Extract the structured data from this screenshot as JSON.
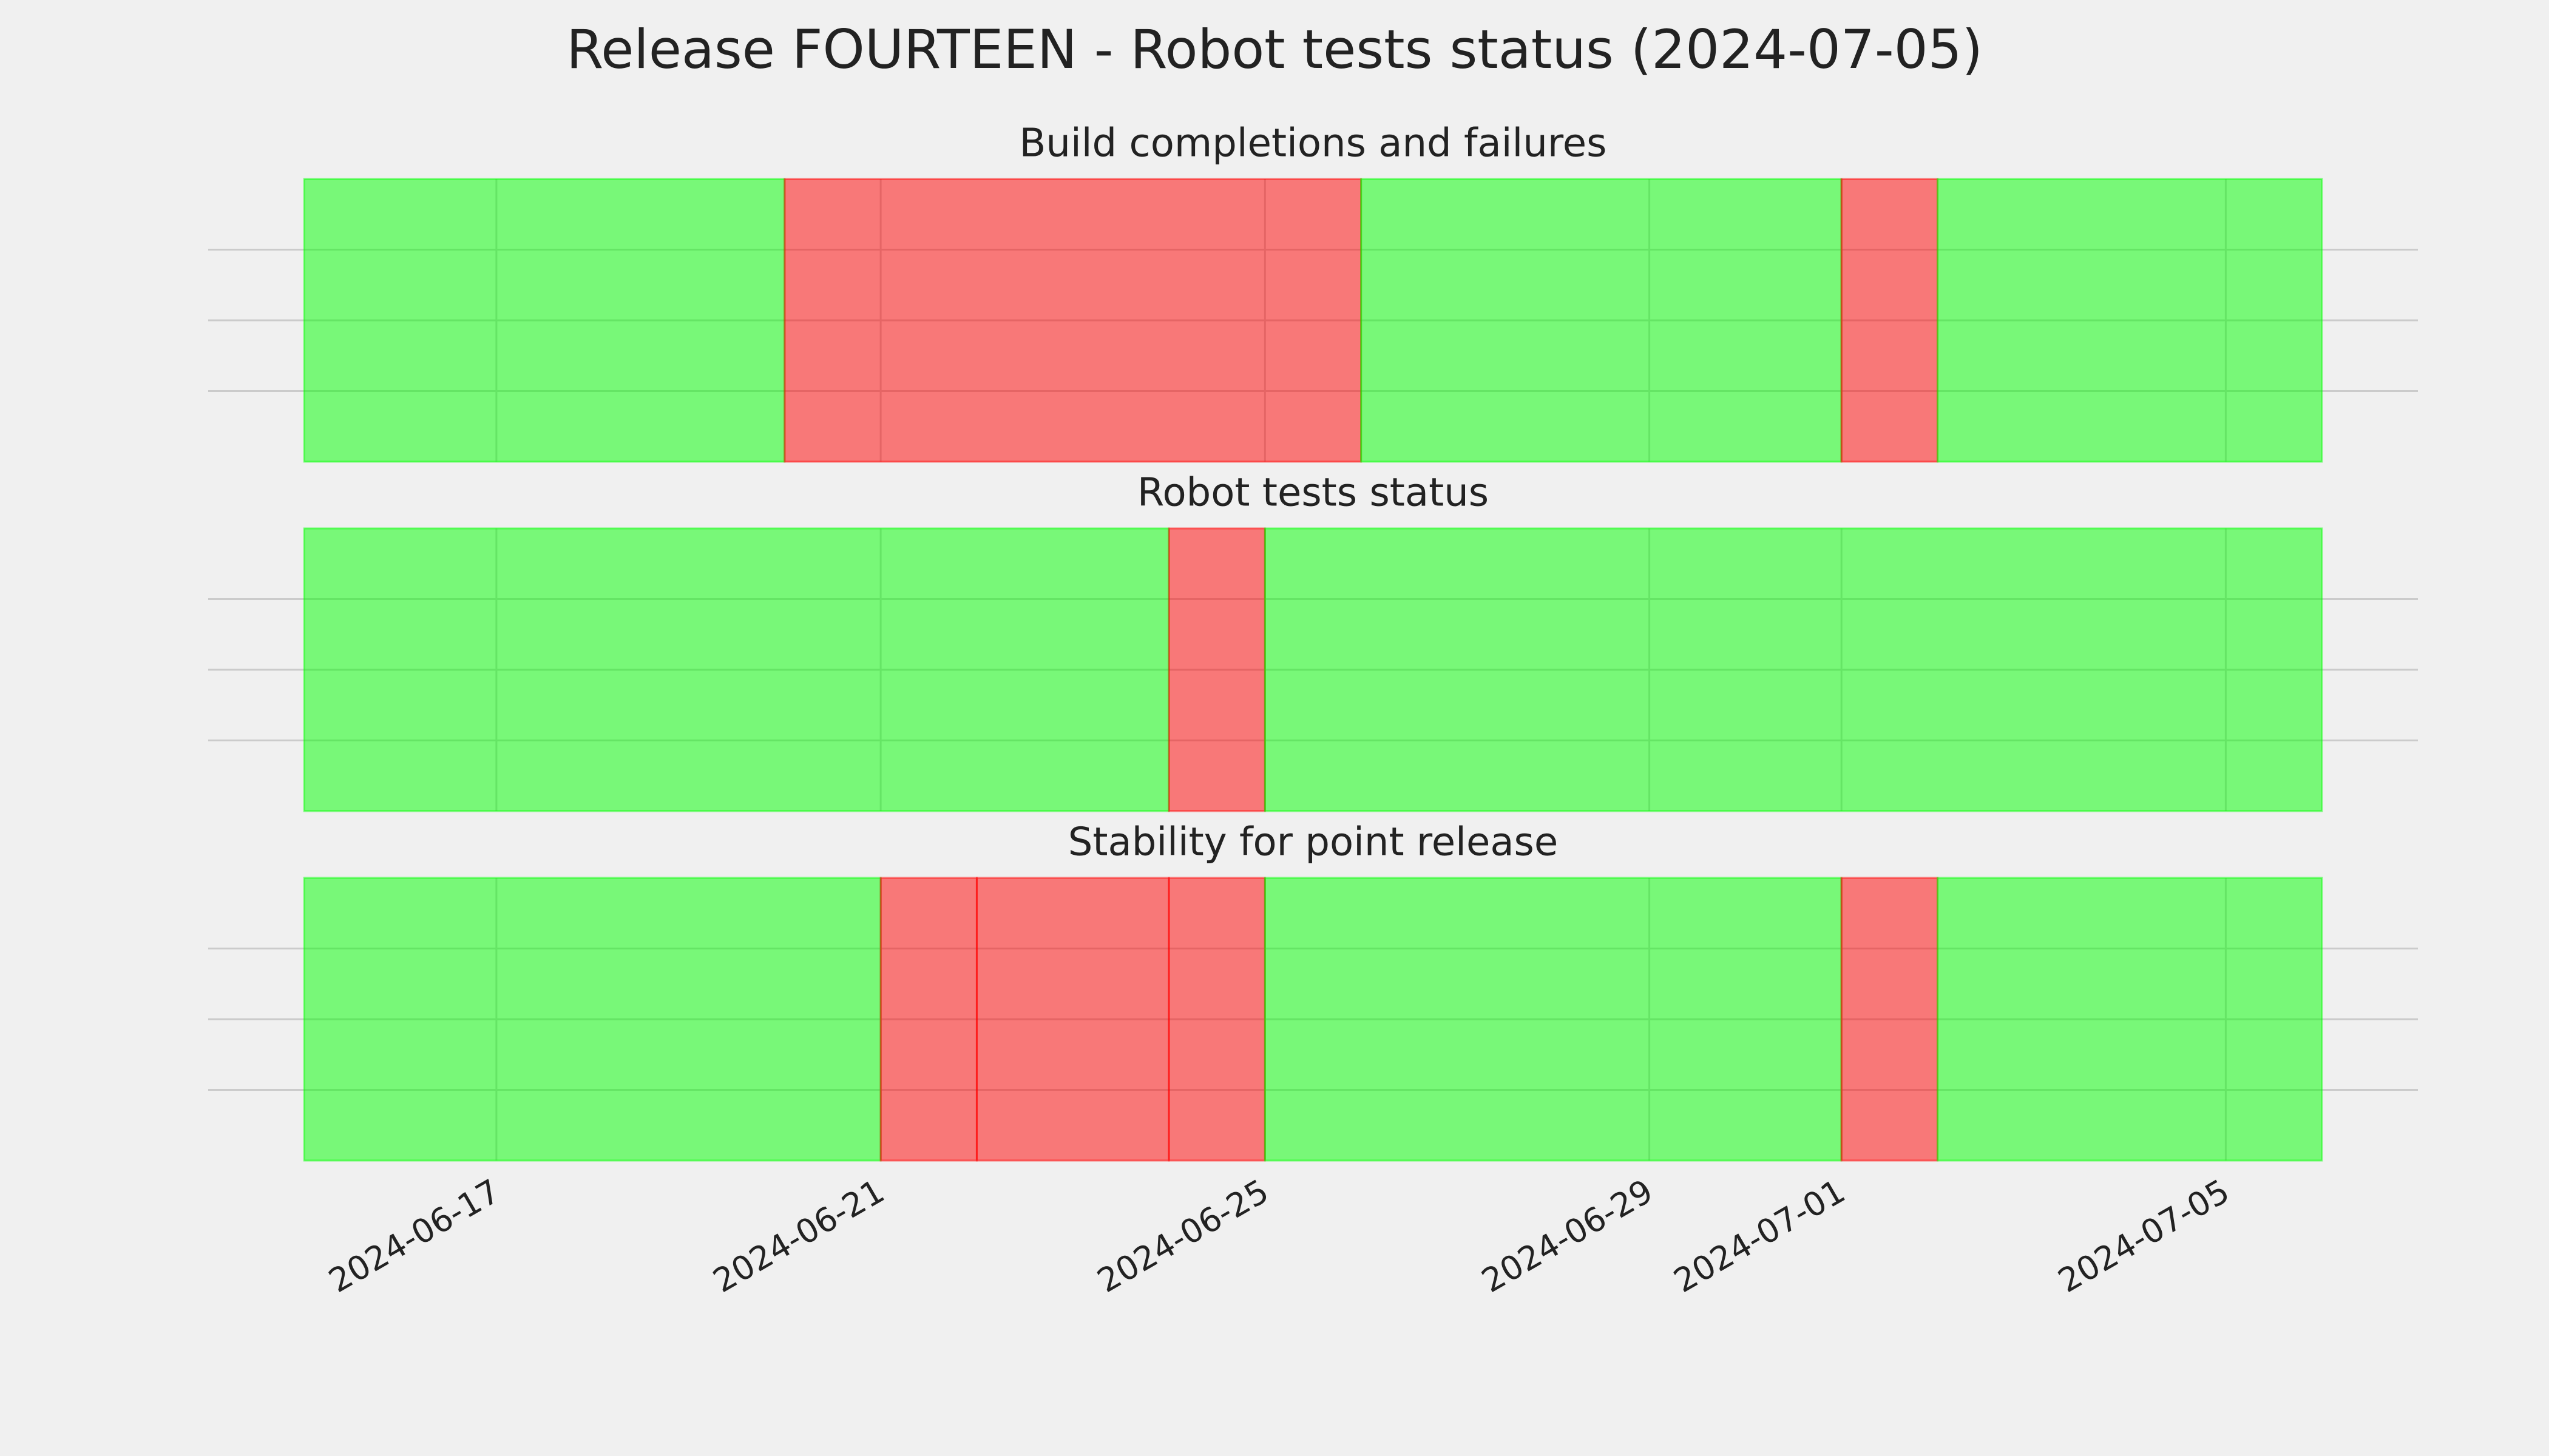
{
  "title": "Release FOURTEEN - Robot tests status (2024-07-05)",
  "chart_data": {
    "type": "timeline",
    "xlim": [
      "2024-06-14",
      "2024-07-07"
    ],
    "xticks": [
      "2024-06-17",
      "2024-06-21",
      "2024-06-25",
      "2024-06-29",
      "2024-07-01",
      "2024-07-05"
    ],
    "grid": true,
    "opacity": 0.5,
    "panels": [
      {
        "title": "Build completions and failures",
        "segments": [
          {
            "start": "2024-06-15",
            "end": "2024-06-20",
            "color": "#00ff00"
          },
          {
            "start": "2024-06-20",
            "end": "2024-06-26",
            "color": "#ff0000"
          },
          {
            "start": "2024-06-26",
            "end": "2024-07-01",
            "color": "#00ff00"
          },
          {
            "start": "2024-07-01",
            "end": "2024-07-02",
            "color": "#ff0000"
          },
          {
            "start": "2024-07-02",
            "end": "2024-07-06",
            "color": "#00ff00"
          }
        ]
      },
      {
        "title": "Robot tests status",
        "segments": [
          {
            "start": "2024-06-15",
            "end": "2024-06-24",
            "color": "#00ff00"
          },
          {
            "start": "2024-06-24",
            "end": "2024-06-25",
            "color": "#ff0000"
          },
          {
            "start": "2024-06-25",
            "end": "2024-07-06",
            "color": "#00ff00"
          }
        ]
      },
      {
        "title": "Stability for point release",
        "segments": [
          {
            "start": "2024-06-15",
            "end": "2024-06-21",
            "color": "#00ff00"
          },
          {
            "start": "2024-06-21",
            "end": "2024-06-22",
            "color": "#ff0000"
          },
          {
            "start": "2024-06-22",
            "end": "2024-06-24",
            "color": "#ff0000"
          },
          {
            "start": "2024-06-24",
            "end": "2024-06-25",
            "color": "#ff0000"
          },
          {
            "start": "2024-06-25",
            "end": "2024-07-01",
            "color": "#00ff00"
          },
          {
            "start": "2024-07-01",
            "end": "2024-07-02",
            "color": "#ff0000"
          },
          {
            "start": "2024-07-02",
            "end": "2024-07-06",
            "color": "#00ff00"
          }
        ]
      }
    ]
  }
}
